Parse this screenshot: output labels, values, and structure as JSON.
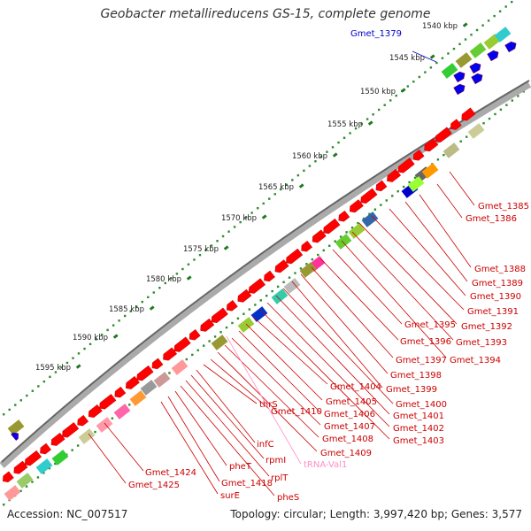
{
  "title": "Geobacter metallireducens GS-15, complete genome",
  "footer": {
    "accession": "Accession: NC_007517",
    "summary": "Topology: circular; Length: 3,997,420 bp; Genes: 3,577"
  },
  "ticks": [
    "1540 kbp",
    "1545 kbp",
    "1550 kbp",
    "1555 kbp",
    "1560 kbp",
    "1565 kbp",
    "1570 kbp",
    "1575 kbp",
    "1580 kbp",
    "1585 kbp",
    "1590 kbp",
    "1595 kbp"
  ],
  "gene_labels": [
    "Gmet_1379",
    "Gmet_1385",
    "Gmet_1386",
    "Gmet_1388",
    "Gmet_1389",
    "Gmet_1390",
    "Gmet_1391",
    "Gmet_1392",
    "Gmet_1393",
    "Gmet_1394",
    "Gmet_1395",
    "Gmet_1396",
    "Gmet_1397",
    "Gmet_1398",
    "Gmet_1399",
    "Gmet_1400",
    "Gmet_1401",
    "Gmet_1402",
    "Gmet_1403",
    "Gmet_1404",
    "Gmet_1405",
    "Gmet_1406",
    "Gmet_1407",
    "Gmet_1408",
    "Gmet_1409",
    "Gmet_1410",
    "thrS",
    "infC",
    "rpmI",
    "rplT",
    "pheS",
    "pheT",
    "tRNA-Val1",
    "Gmet_1418",
    "surE",
    "Gmet_1424",
    "Gmet_1425"
  ],
  "colors": {
    "gene": "#ff0000",
    "blue_gene": "#0000ee",
    "trna": "#ff8ec6",
    "backbone": "#888888",
    "dots": "#228b22"
  }
}
